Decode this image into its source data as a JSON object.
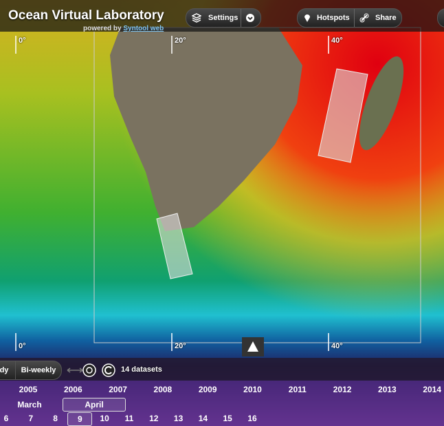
{
  "header": {
    "title": "Ocean Virtual Laboratory",
    "powered_by": "powered by",
    "link": "Syntool web"
  },
  "toolbar": {
    "settings": "Settings",
    "hotspots": "Hotspots",
    "share": "Share"
  },
  "map": {
    "top_labels": [
      "0°",
      "20°",
      "40°"
    ],
    "bottom_labels": [
      "0°",
      "20°",
      "40°"
    ]
  },
  "timeline": {
    "modes": [
      "dy",
      "Bi-weekly"
    ],
    "datasets": "14 datasets",
    "years": [
      2005,
      2006,
      2007,
      2008,
      2009,
      2010,
      2011,
      2012,
      2013,
      2014
    ],
    "months": [
      "March",
      "April"
    ],
    "days": [
      6,
      7,
      8,
      9,
      10,
      11,
      12,
      13,
      14,
      15,
      16
    ]
  }
}
